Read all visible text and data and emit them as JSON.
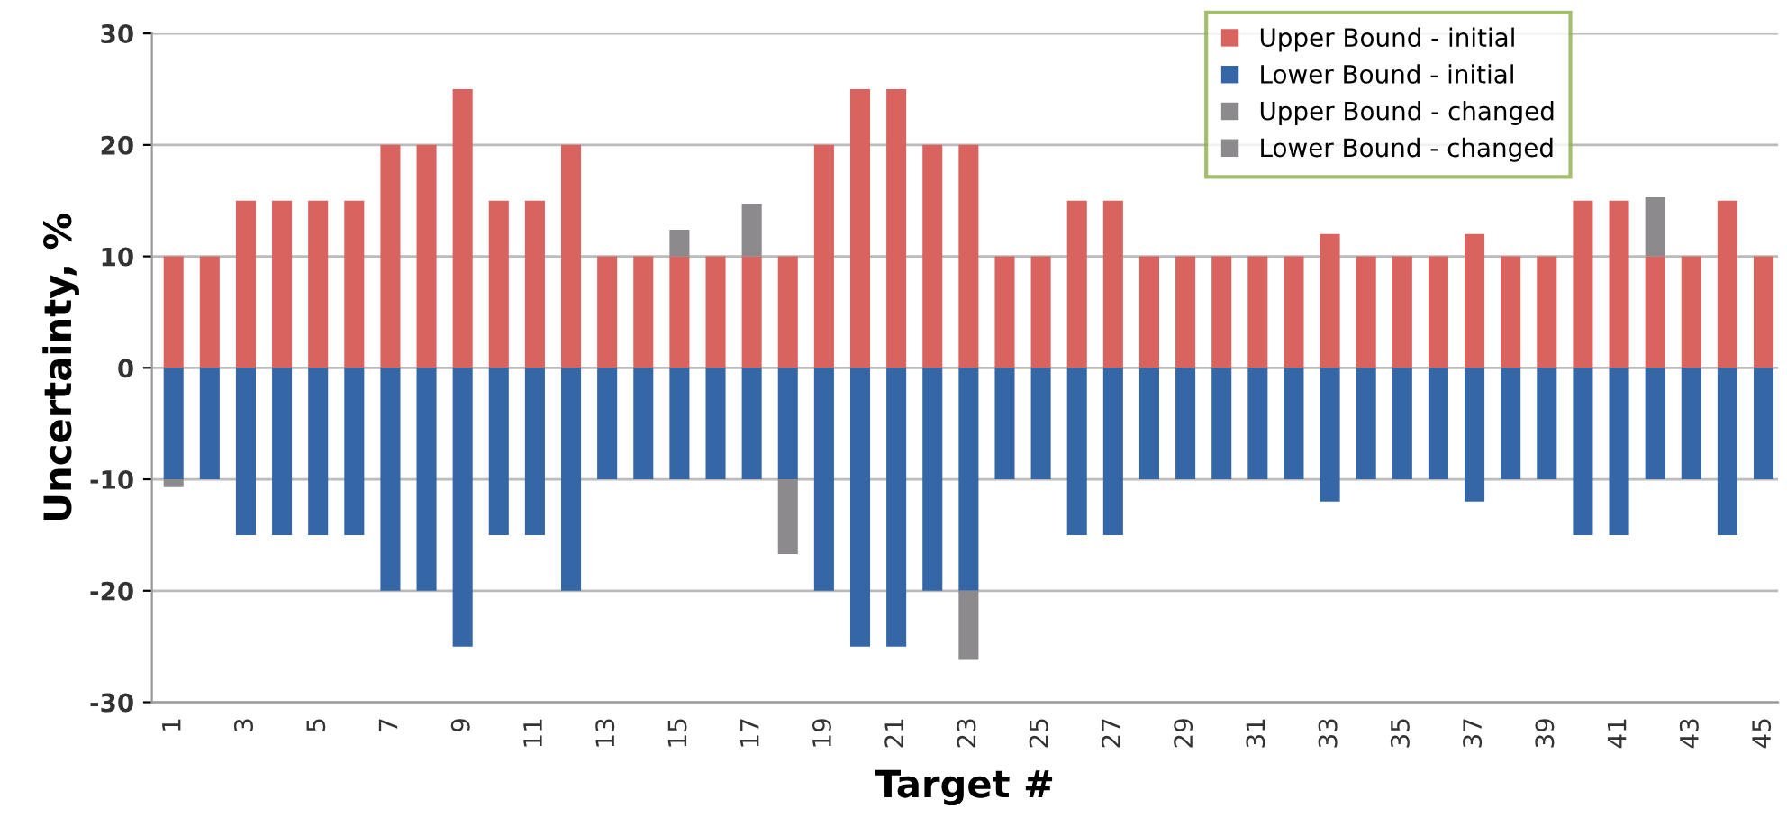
{
  "chart_data": {
    "type": "bar",
    "stacked": true,
    "xlabel": "Target #",
    "ylabel": "Uncertainty, %",
    "categories": [
      "1",
      null,
      "3",
      null,
      "5",
      null,
      "7",
      null,
      "9",
      null,
      "11",
      null,
      "13",
      null,
      "15",
      null,
      "17",
      null,
      "19",
      null,
      "21",
      null,
      "23",
      null,
      "25",
      null,
      "27",
      null,
      "29",
      null,
      "31",
      null,
      "33",
      null,
      "35",
      null,
      "37",
      null,
      "39",
      null,
      "41",
      null,
      "43",
      null,
      "45"
    ],
    "series": [
      {
        "name": "Upper Bound - initial",
        "color": "#d9645f",
        "values": [
          10,
          10,
          15,
          15,
          15,
          15,
          20,
          20,
          25,
          15,
          15,
          20,
          10,
          10,
          10,
          10,
          10,
          10,
          20,
          25,
          25,
          20,
          20,
          10,
          10,
          15,
          15,
          10,
          10,
          10,
          10,
          10,
          12,
          10,
          10,
          10,
          12,
          10,
          10,
          15,
          15,
          10,
          10,
          15,
          10
        ]
      },
      {
        "name": "Lower Bound - initial",
        "color": "#3567a6",
        "values": [
          -10,
          -10,
          -15,
          -15,
          -15,
          -15,
          -20,
          -20,
          -25,
          -15,
          -15,
          -20,
          -10,
          -10,
          -10,
          -10,
          -10,
          -10,
          -20,
          -25,
          -25,
          -20,
          -20,
          -10,
          -10,
          -15,
          -15,
          -10,
          -10,
          -10,
          -10,
          -10,
          -12,
          -10,
          -10,
          -10,
          -12,
          -10,
          -10,
          -15,
          -15,
          -10,
          -10,
          -15,
          -10
        ]
      },
      {
        "name": "Upper Bound - changed",
        "color": "#8c8a8c",
        "values": [
          null,
          null,
          null,
          null,
          null,
          null,
          null,
          null,
          null,
          null,
          null,
          null,
          null,
          null,
          2.4,
          null,
          4.7,
          null,
          null,
          null,
          null,
          null,
          null,
          null,
          null,
          null,
          null,
          null,
          null,
          null,
          null,
          null,
          null,
          null,
          null,
          null,
          null,
          null,
          null,
          null,
          null,
          5.3,
          null,
          null,
          null
        ]
      },
      {
        "name": "Lower Bound - changed",
        "color": "#8c8a8c",
        "values": [
          -0.7,
          null,
          null,
          null,
          null,
          null,
          null,
          null,
          null,
          null,
          null,
          null,
          null,
          null,
          null,
          null,
          null,
          -6.7,
          null,
          null,
          null,
          null,
          -6.2,
          null,
          null,
          null,
          null,
          null,
          null,
          null,
          null,
          null,
          null,
          null,
          null,
          null,
          null,
          null,
          null,
          null,
          null,
          null,
          null,
          null,
          null
        ]
      }
    ],
    "ylim": [
      -30,
      30
    ],
    "yticks": [
      -30,
      -20,
      -10,
      0,
      10,
      20,
      30
    ],
    "grid": "y",
    "legend": "top right"
  }
}
